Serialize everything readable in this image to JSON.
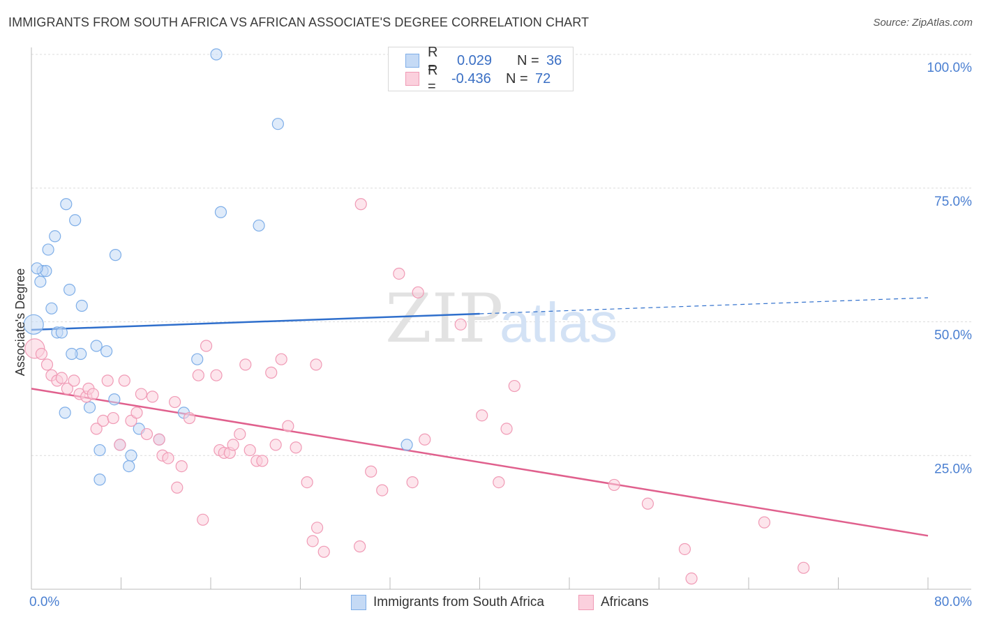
{
  "header": {
    "title": "IMMIGRANTS FROM SOUTH AFRICA VS AFRICAN ASSOCIATE'S DEGREE CORRELATION CHART",
    "source": "Source: ZipAtlas.com"
  },
  "legend_box": {
    "rows": [
      {
        "r_label": "R =",
        "r_value": "0.029",
        "n_label": "N =",
        "n_value": "36",
        "color": "#7eaee8",
        "fill": "#c5daf5"
      },
      {
        "r_label": "R =",
        "r_value": "-0.436",
        "n_label": "N =",
        "n_value": "72",
        "color": "#f09ab5",
        "fill": "#fbd0dd"
      }
    ]
  },
  "bottom_legend": {
    "items": [
      {
        "label": "Immigrants from South Africa",
        "color": "#7eaee8",
        "fill": "#c5daf5"
      },
      {
        "label": "Africans",
        "color": "#f09ab5",
        "fill": "#fbd0dd"
      }
    ]
  },
  "watermark": {
    "zip": "ZIP",
    "atlas": "atlas"
  },
  "chart_data": {
    "type": "scatter",
    "title": "IMMIGRANTS FROM SOUTH AFRICA VS AFRICAN ASSOCIATE'S DEGREE CORRELATION CHART",
    "xlabel": "",
    "ylabel": "Associate's Degree",
    "xlim": [
      0,
      80
    ],
    "ylim": [
      0,
      100
    ],
    "x_ticks": [
      "0.0%",
      "80.0%"
    ],
    "y_ticks": [
      {
        "value": 25,
        "label": "25.0%"
      },
      {
        "value": 50,
        "label": "50.0%"
      },
      {
        "value": 75,
        "label": "75.0%"
      },
      {
        "value": 100,
        "label": "100.0%"
      }
    ],
    "grid": true,
    "legend_position": "top-center",
    "series": [
      {
        "name": "Immigrants from South Africa",
        "color": "#7eaee8",
        "fill": "#c5daf5",
        "line_color": "#2f6fcc",
        "trend": {
          "x0": 0,
          "y0": 48.5,
          "x1": 80,
          "y1": 54.5,
          "solid_until": 40
        },
        "points": [
          [
            0.2,
            49.5
          ],
          [
            0.8,
            57.5
          ],
          [
            1.0,
            59.5
          ],
          [
            1.3,
            59.5
          ],
          [
            1.5,
            63.5
          ],
          [
            1.8,
            52.5
          ],
          [
            2.1,
            66.0
          ],
          [
            2.3,
            48.0
          ],
          [
            2.7,
            48.0
          ],
          [
            3.1,
            72.0
          ],
          [
            3.4,
            56.0
          ],
          [
            3.9,
            69.0
          ],
          [
            4.5,
            53.0
          ],
          [
            4.4,
            44.0
          ],
          [
            3.6,
            44.0
          ],
          [
            3.0,
            33.0
          ],
          [
            5.2,
            34.0
          ],
          [
            5.8,
            45.5
          ],
          [
            6.7,
            44.5
          ],
          [
            7.5,
            62.5
          ],
          [
            7.4,
            35.5
          ],
          [
            6.1,
            26.0
          ],
          [
            6.1,
            20.5
          ],
          [
            7.9,
            27.0
          ],
          [
            8.9,
            25.0
          ],
          [
            8.7,
            23.0
          ],
          [
            9.6,
            30.0
          ],
          [
            11.4,
            28.0
          ],
          [
            13.6,
            33.0
          ],
          [
            14.8,
            43.0
          ],
          [
            16.9,
            70.5
          ],
          [
            16.5,
            100.0
          ],
          [
            20.3,
            68.0
          ],
          [
            22.0,
            87.0
          ],
          [
            33.5,
            27.0
          ],
          [
            0.5,
            60.0
          ]
        ]
      },
      {
        "name": "Africans",
        "color": "#f09ab5",
        "fill": "#fbd0dd",
        "line_color": "#e0608d",
        "trend": {
          "x0": 0,
          "y0": 37.5,
          "x1": 80,
          "y1": 10.0
        },
        "points": [
          [
            0.3,
            45.0
          ],
          [
            0.9,
            44.0
          ],
          [
            1.4,
            42.0
          ],
          [
            1.8,
            40.0
          ],
          [
            2.3,
            39.0
          ],
          [
            2.7,
            39.5
          ],
          [
            3.2,
            37.5
          ],
          [
            3.8,
            39.0
          ],
          [
            4.3,
            36.5
          ],
          [
            4.9,
            36.0
          ],
          [
            5.1,
            37.5
          ],
          [
            5.5,
            36.5
          ],
          [
            5.8,
            30.0
          ],
          [
            6.4,
            31.5
          ],
          [
            6.8,
            39.0
          ],
          [
            7.3,
            32.0
          ],
          [
            7.9,
            27.0
          ],
          [
            8.3,
            39.0
          ],
          [
            8.9,
            31.5
          ],
          [
            9.4,
            33.0
          ],
          [
            9.8,
            36.5
          ],
          [
            10.3,
            29.0
          ],
          [
            10.8,
            36.0
          ],
          [
            11.4,
            28.0
          ],
          [
            11.7,
            25.0
          ],
          [
            12.2,
            24.5
          ],
          [
            12.8,
            35.0
          ],
          [
            13.0,
            19.0
          ],
          [
            13.4,
            23.0
          ],
          [
            14.1,
            32.0
          ],
          [
            15.3,
            13.0
          ],
          [
            15.6,
            45.5
          ],
          [
            14.9,
            40.0
          ],
          [
            16.5,
            40.0
          ],
          [
            16.8,
            26.0
          ],
          [
            17.2,
            25.5
          ],
          [
            17.7,
            25.5
          ],
          [
            18.0,
            27.0
          ],
          [
            18.6,
            29.0
          ],
          [
            19.1,
            42.0
          ],
          [
            19.5,
            26.0
          ],
          [
            20.1,
            24.0
          ],
          [
            20.6,
            24.0
          ],
          [
            21.4,
            40.5
          ],
          [
            21.8,
            27.0
          ],
          [
            22.3,
            43.0
          ],
          [
            22.9,
            30.5
          ],
          [
            23.6,
            26.5
          ],
          [
            24.6,
            20.0
          ],
          [
            25.1,
            9.0
          ],
          [
            25.5,
            11.5
          ],
          [
            26.1,
            7.0
          ],
          [
            25.4,
            42.0
          ],
          [
            29.3,
            8.0
          ],
          [
            29.4,
            72.0
          ],
          [
            30.3,
            22.0
          ],
          [
            31.3,
            18.5
          ],
          [
            32.8,
            59.0
          ],
          [
            34.0,
            20.0
          ],
          [
            34.5,
            55.5
          ],
          [
            35.1,
            28.0
          ],
          [
            38.3,
            49.5
          ],
          [
            40.2,
            32.5
          ],
          [
            41.7,
            20.0
          ],
          [
            42.4,
            30.0
          ],
          [
            43.1,
            38.0
          ],
          [
            52.0,
            19.5
          ],
          [
            55.0,
            16.0
          ],
          [
            58.3,
            7.5
          ],
          [
            58.9,
            2.0
          ],
          [
            65.4,
            12.5
          ],
          [
            68.9,
            4.0
          ]
        ]
      }
    ]
  }
}
